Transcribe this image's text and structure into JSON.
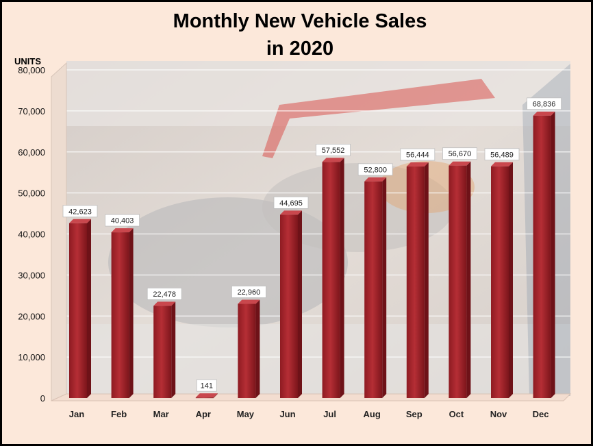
{
  "chart_data": {
    "type": "bar",
    "title_lines": [
      "Monthly New Vehicle Sales",
      "in 2020"
    ],
    "ylabel": "UNITS",
    "xlabel": "",
    "categories": [
      "Jan",
      "Feb",
      "Mar",
      "Apr",
      "May",
      "Jun",
      "Jul",
      "Aug",
      "Sep",
      "Oct",
      "Nov",
      "Dec"
    ],
    "values": [
      42623,
      40403,
      22478,
      141,
      22960,
      44695,
      57552,
      52800,
      56444,
      56670,
      56489,
      68836
    ],
    "data_labels": [
      "42,623",
      "40,403",
      "22,478",
      "141",
      "22,960",
      "44,695",
      "57,552",
      "52,800",
      "56,444",
      "56,670",
      "56,489",
      "68,836"
    ],
    "ylim": [
      0,
      80000
    ],
    "yticks": [
      0,
      10000,
      20000,
      30000,
      40000,
      50000,
      60000,
      70000,
      80000
    ],
    "ytick_labels": [
      "0",
      "10,000",
      "20,000",
      "30,000",
      "40,000",
      "50,000",
      "60,000",
      "70,000",
      "80,000"
    ],
    "grid": true,
    "legend": "none",
    "bar_color": "#a3232a",
    "background_color": "#fce8da",
    "grid_color": "#ffffff"
  }
}
